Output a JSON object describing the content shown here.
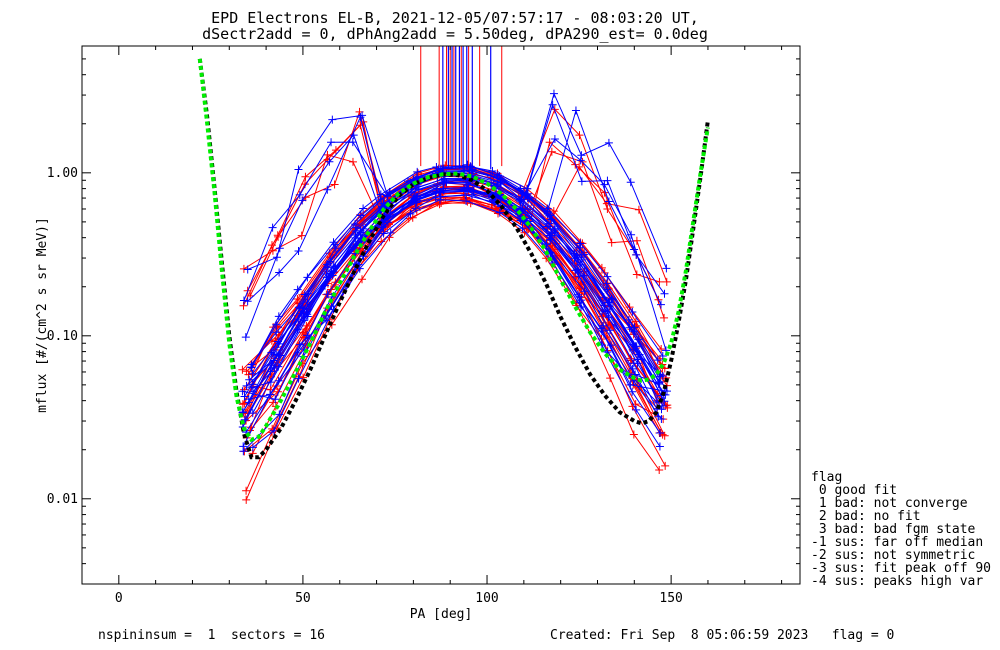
{
  "chart_data": {
    "type": "line",
    "title_lines": [
      "EPD Electrons EL-B, 2021-12-05/07:57:17 - 08:03:20 UT,",
      "dSectr2add = 0, dPhAng2add = 5.50deg, dPA290_est=   0.0deg"
    ],
    "xlabel": "PA [deg]",
    "ylabel": "mflux [#/(cm^2 s sr MeV)]",
    "xlim": [
      -10,
      185
    ],
    "ylim": [
      0.003,
      6.0
    ],
    "yscale": "log",
    "xticks": [
      0,
      50,
      100,
      150
    ],
    "xtick_labels": [
      "0",
      "50",
      "100",
      "150"
    ],
    "yticks": [
      0.01,
      0.1,
      1.0
    ],
    "ytick_labels": [
      "0.01",
      "0.10",
      "1.00"
    ],
    "grid": false,
    "colors": {
      "red_series": "#ff0000",
      "blue_series": "#0000ff",
      "fit_black": "#000000",
      "fit_green": "#00ee00"
    },
    "fit_black": {
      "x": [
        22,
        24,
        26,
        28,
        30,
        32,
        34,
        36,
        38,
        40,
        44,
        48,
        52,
        56,
        60,
        64,
        68,
        72,
        76,
        80,
        84,
        88,
        92,
        96,
        100,
        104,
        108,
        112,
        116,
        120,
        124,
        128,
        132,
        136,
        140,
        142,
        144,
        146,
        148,
        150,
        152,
        154,
        156,
        158,
        160
      ],
      "y": [
        5.0,
        2.2,
        0.8,
        0.28,
        0.1,
        0.045,
        0.025,
        0.018,
        0.018,
        0.02,
        0.027,
        0.04,
        0.062,
        0.1,
        0.16,
        0.25,
        0.38,
        0.55,
        0.72,
        0.85,
        0.93,
        0.98,
        0.97,
        0.9,
        0.78,
        0.62,
        0.46,
        0.32,
        0.21,
        0.13,
        0.085,
        0.058,
        0.043,
        0.034,
        0.03,
        0.029,
        0.03,
        0.034,
        0.045,
        0.07,
        0.12,
        0.22,
        0.45,
        0.95,
        2.1
      ]
    },
    "fit_green": {
      "x": [
        22,
        24,
        26,
        28,
        30,
        32,
        34,
        36,
        38,
        40,
        44,
        48,
        52,
        56,
        60,
        64,
        68,
        72,
        76,
        80,
        84,
        88,
        92,
        96,
        100,
        104,
        108,
        112,
        116,
        120,
        124,
        128,
        132,
        136,
        140,
        142,
        144,
        146,
        148,
        150,
        152,
        154,
        156,
        158,
        160
      ],
      "y": [
        5.0,
        2.0,
        0.75,
        0.25,
        0.09,
        0.042,
        0.027,
        0.023,
        0.024,
        0.028,
        0.04,
        0.06,
        0.09,
        0.14,
        0.21,
        0.31,
        0.44,
        0.6,
        0.75,
        0.86,
        0.94,
        0.98,
        0.99,
        0.95,
        0.86,
        0.74,
        0.6,
        0.46,
        0.33,
        0.22,
        0.15,
        0.105,
        0.078,
        0.062,
        0.055,
        0.053,
        0.054,
        0.058,
        0.068,
        0.09,
        0.14,
        0.25,
        0.5,
        1.0,
        1.9
      ]
    },
    "center_peak_x": 92,
    "red_fan_count": 26,
    "blue_fan_count": 26,
    "red_vertical_x": [
      82,
      87,
      89,
      90,
      91,
      93,
      95,
      98,
      104
    ],
    "blue_vertical_x": [
      88,
      89.5,
      90.5,
      91.5,
      92.5,
      93.5,
      94.5,
      96,
      101
    ],
    "legend_title": "flag",
    "legend_items": [
      " 0 good fit",
      " 1 bad: not converge",
      " 2 bad: no fit",
      " 3 bad: bad fgm state",
      "-1 sus: far off median",
      "-2 sus: not symmetric",
      "-3 sus: fit peak off 90",
      "-4 sus: peaks high var"
    ],
    "footer_left": "nspininsum =  1  sectors = 16",
    "footer_right": "Created: Fri Sep  8 05:06:59 2023   flag = 0"
  }
}
